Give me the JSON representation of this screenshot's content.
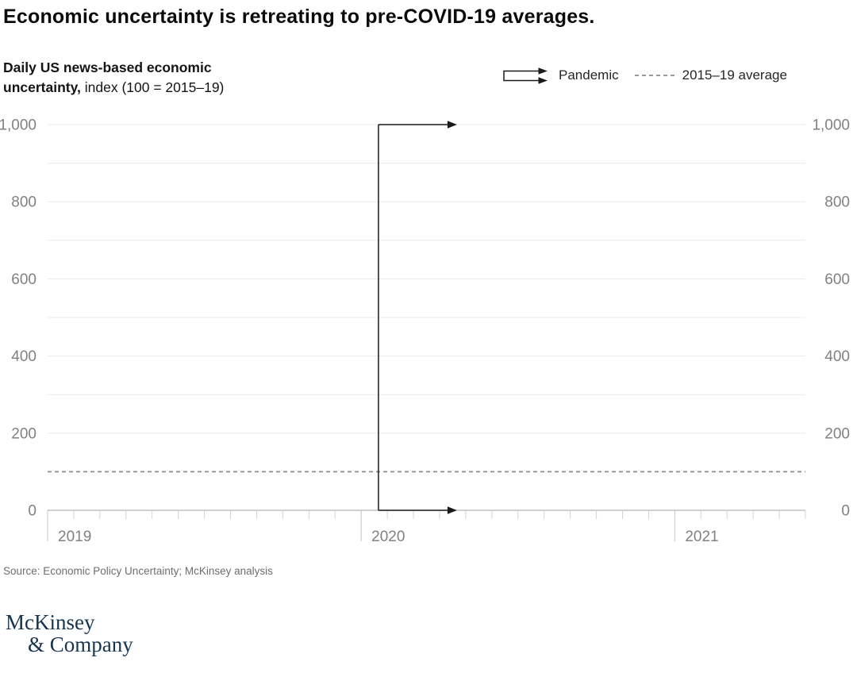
{
  "title": "Economic uncertainty is retreating to pre-COVID-19 averages.",
  "subtitle": {
    "bold_part": "Daily US news-based economic uncertainty,",
    "regular_part": " index (100 = 2015–19)"
  },
  "legend": {
    "pandemic_label": "Pandemic",
    "average_label": "2015–19 average"
  },
  "chart_data": {
    "type": "line",
    "title": "Daily US news-based economic uncertainty",
    "unit_note": "index (100 = 2015–19)",
    "series": [],
    "y_axis": {
      "min": 0,
      "max": 1000,
      "label_step": 200,
      "grid_step": 100,
      "tick_labels": [
        "0",
        "200",
        "400",
        "600",
        "800",
        "1,000"
      ],
      "sides": [
        "left",
        "right"
      ]
    },
    "x_axis": {
      "year_labels": [
        "2019",
        "2020",
        "2021"
      ],
      "months_total": 29,
      "months_per_year": 12
    },
    "reference_line": {
      "value": 100,
      "label": "2015–19 average",
      "style": "dashed"
    },
    "event_marker": {
      "label": "Pandemic",
      "month_index": 12.66,
      "value_from": 0,
      "value_to": 1000
    },
    "grid": true,
    "legend_position": "top-right"
  },
  "source": "Source: Economic Policy Uncertainty; McKinsey analysis",
  "logo": {
    "line1": "McKinsey",
    "line2": "& Company"
  },
  "colors": {
    "title_text": "#0b0b0b",
    "axis_label": "#818181",
    "gridline": "#e9e9e9",
    "axis_line": "#b3b3b3",
    "year_tick": "#c4c4c4",
    "month_tick": "#d4d4d4",
    "reference_line": "#8c8c8c",
    "marker": "#1a1a1a",
    "source_text": "#6e6e6e",
    "logo_navy": "#173450",
    "background": "#ffffff"
  }
}
